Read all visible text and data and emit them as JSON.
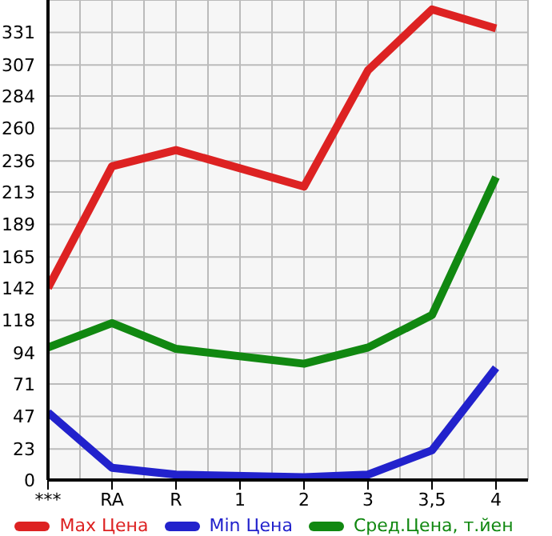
{
  "chart_data": {
    "type": "line",
    "categories": [
      "***",
      "RA",
      "R",
      "1",
      "2",
      "3",
      "3,5",
      "4"
    ],
    "series": [
      {
        "name": "Max Цена",
        "color": "#dd2222",
        "values": [
          142,
          232,
          244,
          null,
          217,
          303,
          348,
          334
        ]
      },
      {
        "name": "Min Цена",
        "color": "#2222cc",
        "values": [
          50,
          9,
          4,
          null,
          2,
          4,
          22,
          83
        ]
      },
      {
        "name": "Сред.Цена, т.йен",
        "color": "#118811",
        "values": [
          98,
          116,
          97,
          null,
          86,
          98,
          122,
          224
        ]
      }
    ],
    "ylim": [
      0,
      355
    ],
    "yticks": [
      0,
      23,
      47,
      71,
      94,
      118,
      142,
      165,
      189,
      213,
      236,
      260,
      284,
      307,
      331
    ],
    "grid": true,
    "legend": "bottom",
    "marker": "none",
    "line_style": "solid"
  }
}
